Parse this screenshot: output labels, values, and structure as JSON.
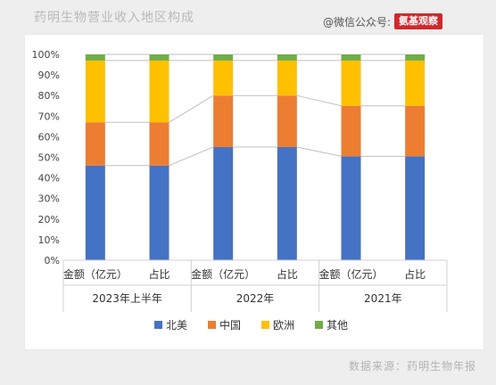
{
  "title": "药明生物营业收入地区构成",
  "watermark": {
    "text": "@微信公众号:",
    "brand": "氨基观察"
  },
  "source": "数据来源：药明生物年报",
  "colors": {
    "北美": "#4472c4",
    "中国": "#ed7d31",
    "欧洲": "#ffc000",
    "其他": "#70ad47"
  },
  "chart_data": {
    "type": "bar",
    "stacked": true,
    "groups": [
      "2023年上半年",
      "2022年",
      "2021年"
    ],
    "categories": [
      "金额（亿元）",
      "占比",
      "金额（亿元）",
      "占比",
      "金额（亿元）",
      "占比"
    ],
    "group_of_category": [
      0,
      0,
      1,
      1,
      2,
      2
    ],
    "series": [
      {
        "name": "北美",
        "values": [
          46,
          46,
          55,
          55,
          50.5,
          50.5
        ]
      },
      {
        "name": "中国",
        "values": [
          21,
          21,
          25,
          25,
          24.5,
          24.5
        ]
      },
      {
        "name": "欧洲",
        "values": [
          30,
          30,
          17,
          17,
          22,
          22
        ]
      },
      {
        "name": "其他",
        "values": [
          3,
          3,
          3,
          3,
          3,
          3
        ]
      }
    ],
    "y_ticks": [
      "0%",
      "10%",
      "20%",
      "30%",
      "40%",
      "50%",
      "60%",
      "70%",
      "80%",
      "90%",
      "100%"
    ],
    "ylim": [
      0,
      100
    ],
    "grid": false,
    "legend": "bottom",
    "connector_lines": true
  }
}
